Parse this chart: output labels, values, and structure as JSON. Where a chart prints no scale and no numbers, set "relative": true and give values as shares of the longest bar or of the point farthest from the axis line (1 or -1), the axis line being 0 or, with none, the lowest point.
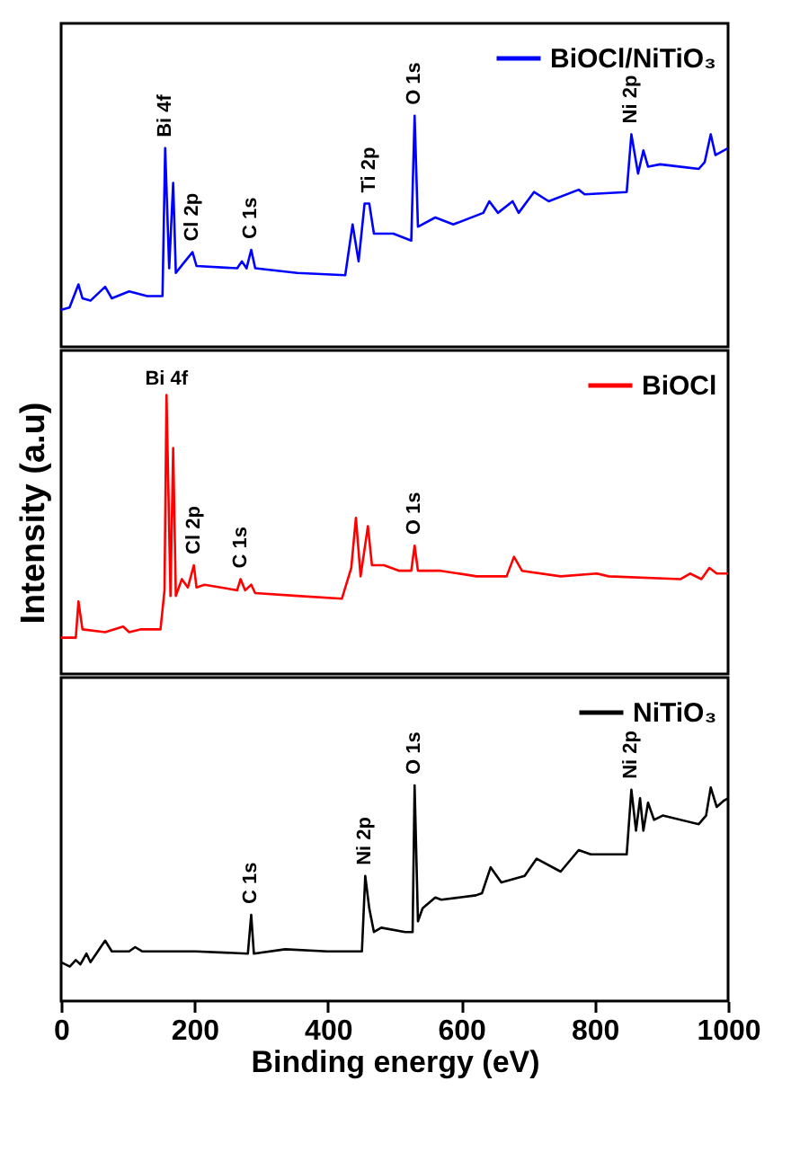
{
  "chart_data": [
    {
      "type": "line",
      "relative": true,
      "xlim": [
        0,
        1000
      ],
      "xticks": [
        0,
        200,
        400,
        600,
        800,
        1000
      ],
      "tick_labels": false,
      "legend": "top right",
      "series": [
        {
          "name": "BiOCl/NiTiO₃",
          "color": "#0000ff",
          "x": [
            0,
            12.6,
            26,
            32,
            44,
            66,
            76,
            102,
            129,
            152,
            156,
            162,
            168,
            172,
            183,
            197,
            203,
            264,
            271,
            278,
            285,
            291,
            354,
            426,
            437,
            446,
            455,
            462,
            469,
            498,
            525,
            530,
            535,
            561,
            588,
            633,
            642,
            655,
            677,
            686,
            709,
            731,
            776,
            785,
            848,
            855,
            865,
            873,
            880,
            898,
            956,
            965,
            974,
            981,
            1000
          ],
          "values": [
            0.16,
            0.17,
            0.27,
            0.21,
            0.2,
            0.26,
            0.21,
            0.24,
            0.22,
            0.22,
            0.86,
            0.34,
            0.71,
            0.32,
            0.36,
            0.41,
            0.35,
            0.34,
            0.37,
            0.34,
            0.42,
            0.34,
            0.32,
            0.31,
            0.53,
            0.37,
            0.62,
            0.62,
            0.49,
            0.49,
            0.46,
            1.0,
            0.52,
            0.56,
            0.53,
            0.58,
            0.63,
            0.58,
            0.63,
            0.58,
            0.67,
            0.63,
            0.68,
            0.66,
            0.67,
            0.92,
            0.75,
            0.85,
            0.78,
            0.79,
            0.77,
            0.8,
            0.92,
            0.83,
            0.86
          ]
        }
      ],
      "annotations": [
        {
          "text": "Bi 4f",
          "x": 156,
          "y": 0.86
        },
        {
          "text": "Cl 2p",
          "x": 197,
          "y": 0.41
        },
        {
          "text": "C 1s",
          "x": 285,
          "y": 0.42
        },
        {
          "text": "Ti 2p",
          "x": 462,
          "y": 0.62
        },
        {
          "text": "O 1s",
          "x": 530,
          "y": 1.0
        },
        {
          "text": "Ni 2p",
          "x": 855,
          "y": 0.92
        }
      ]
    },
    {
      "type": "line",
      "relative": true,
      "xlim": [
        0,
        1000
      ],
      "xticks": [
        0,
        200,
        400,
        600,
        800,
        1000
      ],
      "tick_labels": false,
      "legend": "top right",
      "ylabel": "Intensity (a.u)",
      "series": [
        {
          "name": "BiOCl",
          "color": "#ff0000",
          "x": [
            0,
            22,
            26,
            32,
            66,
            93,
            102,
            120,
            149,
            155,
            158,
            164,
            168,
            172,
            181,
            190,
            199,
            203,
            215,
            264,
            269,
            276,
            285,
            291,
            354,
            421,
            435,
            442,
            449,
            460,
            466,
            484,
            507,
            525,
            530,
            535,
            569,
            623,
            668,
            679,
            691,
            749,
            803,
            821,
            929,
            943,
            960,
            972,
            983,
            1000
          ],
          "values": [
            0.13,
            0.13,
            0.26,
            0.16,
            0.15,
            0.17,
            0.15,
            0.16,
            0.16,
            0.3,
            1.0,
            0.28,
            0.81,
            0.28,
            0.34,
            0.31,
            0.39,
            0.31,
            0.32,
            0.3,
            0.34,
            0.3,
            0.32,
            0.29,
            0.28,
            0.27,
            0.38,
            0.56,
            0.35,
            0.53,
            0.39,
            0.39,
            0.37,
            0.37,
            0.46,
            0.37,
            0.37,
            0.35,
            0.35,
            0.42,
            0.37,
            0.35,
            0.36,
            0.35,
            0.34,
            0.36,
            0.34,
            0.38,
            0.36,
            0.36
          ]
        }
      ],
      "annotations": [
        {
          "text": "Bi 4f",
          "x": 158,
          "y": 1.0
        },
        {
          "text": "Cl 2p",
          "x": 199,
          "y": 0.39
        },
        {
          "text": "C 1s",
          "x": 269,
          "y": 0.34
        },
        {
          "text": "O 1s",
          "x": 530,
          "y": 0.46
        }
      ]
    },
    {
      "type": "line",
      "relative": true,
      "xlim": [
        0,
        1000
      ],
      "xticks": [
        0,
        200,
        400,
        600,
        800,
        1000
      ],
      "tick_labels": "x",
      "legend": "top right",
      "xlabel": "Binding energy (eV)",
      "series": [
        {
          "name": "NiTiO₃",
          "color": "#000000",
          "x": [
            0,
            13,
            22,
            29,
            38,
            44,
            66,
            76,
            102,
            111,
            122,
            201,
            280,
            285,
            289,
            336,
            399,
            451,
            456,
            462,
            469,
            480,
            516,
            527,
            530,
            535,
            542,
            561,
            570,
            597,
            622,
            631,
            644,
            660,
            695,
            713,
            749,
            776,
            794,
            848,
            855,
            862,
            868,
            873,
            880,
            889,
            902,
            956,
            967,
            974,
            983,
            994,
            1000
          ],
          "values": [
            0.18,
            0.16,
            0.19,
            0.17,
            0.22,
            0.18,
            0.28,
            0.23,
            0.23,
            0.25,
            0.23,
            0.23,
            0.22,
            0.4,
            0.22,
            0.24,
            0.23,
            0.23,
            0.58,
            0.43,
            0.32,
            0.34,
            0.32,
            0.32,
            1.0,
            0.37,
            0.43,
            0.48,
            0.47,
            0.48,
            0.49,
            0.5,
            0.62,
            0.55,
            0.58,
            0.66,
            0.6,
            0.7,
            0.68,
            0.68,
            0.98,
            0.79,
            0.94,
            0.79,
            0.92,
            0.84,
            0.86,
            0.82,
            0.86,
            0.99,
            0.9,
            0.93,
            0.94
          ]
        }
      ],
      "annotations": [
        {
          "text": "C 1s",
          "x": 285,
          "y": 0.4
        },
        {
          "text": "Ni 2p",
          "x": 456,
          "y": 0.58
        },
        {
          "text": "O 1s",
          "x": 530,
          "y": 1.0
        },
        {
          "text": "Ni 2p",
          "x": 855,
          "y": 0.98
        }
      ]
    }
  ]
}
